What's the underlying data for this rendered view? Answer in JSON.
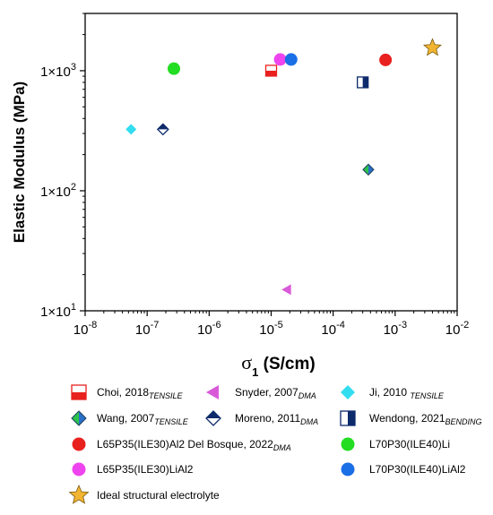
{
  "chart_data": {
    "type": "scatter",
    "title": "",
    "xlabel": "σ₁ (S/cm)",
    "xlabel_parts": {
      "symbol": "σ",
      "subscript": "1",
      "rest": " (S/cm)"
    },
    "ylabel": "Elastic Modulus (MPa)",
    "x_scale": "log",
    "y_scale": "log",
    "xlim": [
      1e-08,
      0.01
    ],
    "ylim": [
      10,
      3000
    ],
    "x_ticks": [
      {
        "value": 1e-08,
        "base": "10",
        "exp": "-8"
      },
      {
        "value": 1e-07,
        "base": "10",
        "exp": "-7"
      },
      {
        "value": 1e-06,
        "base": "10",
        "exp": "-6"
      },
      {
        "value": 1e-05,
        "base": "10",
        "exp": "-5"
      },
      {
        "value": 0.0001,
        "base": "10",
        "exp": "-4"
      },
      {
        "value": 0.001,
        "base": "10",
        "exp": "-3"
      },
      {
        "value": 0.01,
        "base": "10",
        "exp": "-2"
      }
    ],
    "y_ticks": [
      {
        "value": 10,
        "mant": "1×10",
        "exp": "1"
      },
      {
        "value": 100,
        "mant": "1×10",
        "exp": "2"
      },
      {
        "value": 1000,
        "mant": "1×10",
        "exp": "3"
      }
    ],
    "grid": false,
    "legend_position": "bottom",
    "series": [
      {
        "key": "choi",
        "name": "Choi, 2018",
        "sub": "TENSILE",
        "sub_gap": false,
        "marker": "square-half-bottom",
        "color": "#e8211f",
        "points": [
          [
            1e-05,
            1000
          ]
        ]
      },
      {
        "key": "snyder",
        "name": "Snyder, 2007",
        "sub": "DMA",
        "sub_gap": false,
        "marker": "triangle-left",
        "color": "#d95ad9",
        "points": [
          [
            1.8e-05,
            15
          ]
        ]
      },
      {
        "key": "ji",
        "name": "Ji, 2010",
        "sub": "TENSILE",
        "sub_gap": true,
        "marker": "diamond",
        "color": "#33ddf0",
        "points": [
          [
            5.5e-08,
            325
          ]
        ]
      },
      {
        "key": "wang",
        "name": "Wang, 2007",
        "sub": "TENSILE",
        "sub_gap": false,
        "marker": "diamond-half-left",
        "color": "#2bc24a",
        "color2": "#2a6fc7",
        "points": [
          [
            0.00037,
            150
          ]
        ]
      },
      {
        "key": "moreno",
        "name": "Moreno, 2011",
        "sub": "DMA",
        "sub_gap": false,
        "marker": "diamond-half-top",
        "color": "#0d2a6b",
        "points": [
          [
            1.8e-07,
            325
          ]
        ]
      },
      {
        "key": "wendong",
        "name": "Wendong, 2021",
        "sub": "BENDING",
        "sub_gap": false,
        "marker": "square-half-right",
        "color": "#0d2a6b",
        "points": [
          [
            0.0003,
            800
          ]
        ]
      },
      {
        "key": "delbosque",
        "name": "L65P35(ILE30)Al2 Del Bosque, 2022",
        "sub": "DMA",
        "sub_gap": false,
        "marker": "circle",
        "color": "#e8211f",
        "points": [
          [
            0.0007,
            1230
          ]
        ]
      },
      {
        "key": "l70li",
        "name": "L70P30(ILE40)Li",
        "sub": "",
        "sub_gap": false,
        "marker": "circle",
        "color": "#22dd22",
        "points": [
          [
            2.7e-07,
            1040
          ]
        ]
      },
      {
        "key": "l65lial2",
        "name": "L65P35(ILE30)LiAl2",
        "sub": "",
        "sub_gap": false,
        "marker": "circle",
        "color": "#ee44ee",
        "points": [
          [
            1.4e-05,
            1240
          ]
        ]
      },
      {
        "key": "l70lial2",
        "name": "L70P30(ILE40)LiAl2",
        "sub": "",
        "sub_gap": false,
        "marker": "circle",
        "color": "#1a6ee6",
        "points": [
          [
            2.1e-05,
            1240
          ]
        ]
      },
      {
        "key": "ideal",
        "name": "Ideal structural  electrolyte",
        "sub": "",
        "sub_gap": false,
        "marker": "star",
        "color": "#f2b531",
        "points": [
          [
            0.004,
            1550
          ]
        ]
      }
    ]
  }
}
